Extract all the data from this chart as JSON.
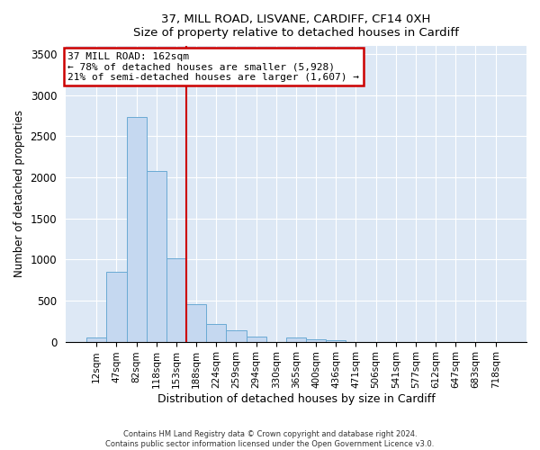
{
  "title1": "37, MILL ROAD, LISVANE, CARDIFF, CF14 0XH",
  "title2": "Size of property relative to detached houses in Cardiff",
  "xlabel": "Distribution of detached houses by size in Cardiff",
  "ylabel": "Number of detached properties",
  "bar_labels": [
    "12sqm",
    "47sqm",
    "82sqm",
    "118sqm",
    "153sqm",
    "188sqm",
    "224sqm",
    "259sqm",
    "294sqm",
    "330sqm",
    "365sqm",
    "400sqm",
    "436sqm",
    "471sqm",
    "506sqm",
    "541sqm",
    "577sqm",
    "612sqm",
    "647sqm",
    "683sqm",
    "718sqm"
  ],
  "bar_values": [
    50,
    850,
    2730,
    2080,
    1010,
    455,
    210,
    140,
    60,
    0,
    45,
    30,
    20,
    0,
    0,
    0,
    0,
    0,
    0,
    0,
    0
  ],
  "bar_color": "#c5d8f0",
  "bar_edge_color": "#6aaad4",
  "vline_x": 4.5,
  "vline_color": "#cc0000",
  "annotation_title": "37 MILL ROAD: 162sqm",
  "annotation_line1": "← 78% of detached houses are smaller (5,928)",
  "annotation_line2": "21% of semi-detached houses are larger (1,607) →",
  "annotation_box_facecolor": "#ffffff",
  "annotation_box_edgecolor": "#cc0000",
  "ylim": [
    0,
    3600
  ],
  "yticks": [
    0,
    500,
    1000,
    1500,
    2000,
    2500,
    3000,
    3500
  ],
  "footnote1": "Contains HM Land Registry data © Crown copyright and database right 2024.",
  "footnote2": "Contains public sector information licensed under the Open Government Licence v3.0.",
  "fig_bg_color": "#ffffff",
  "plot_bg_color": "#dde8f5"
}
